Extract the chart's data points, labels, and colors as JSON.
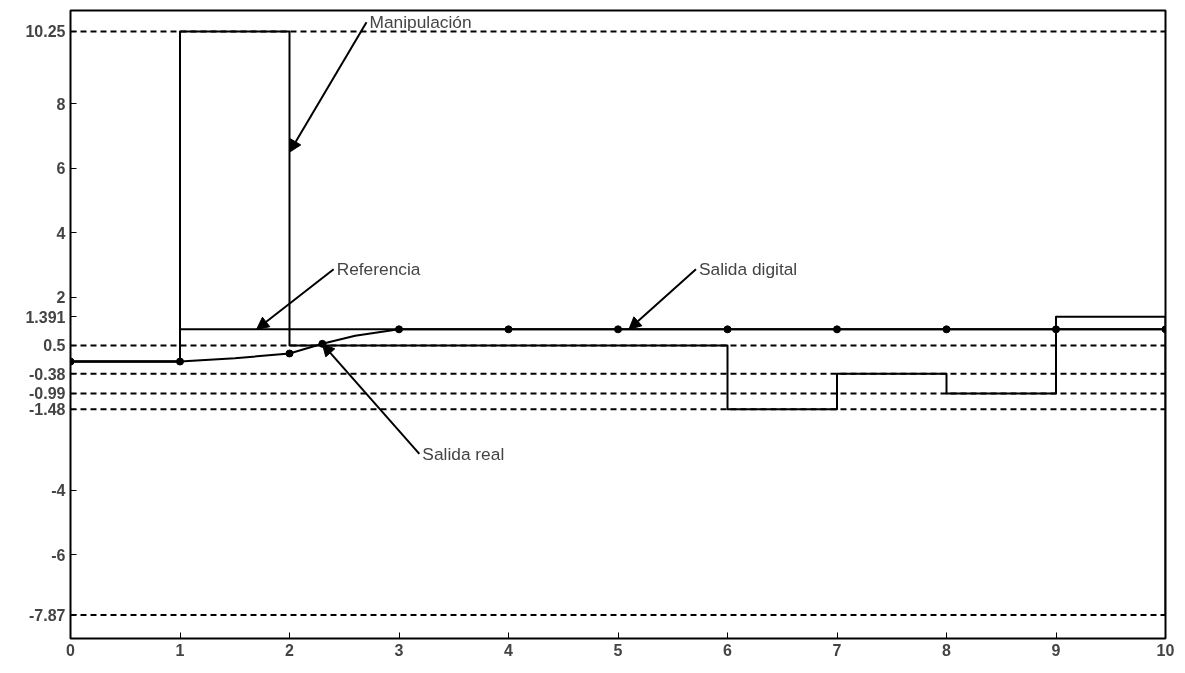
{
  "chart_data": {
    "type": "line",
    "xlim": [
      0,
      10
    ],
    "xticks": [
      0,
      1,
      2,
      3,
      4,
      5,
      6,
      7,
      8,
      9,
      10
    ],
    "ylim": [
      -8.6,
      10.9
    ],
    "yticks": [
      10.25,
      8,
      6,
      4,
      2,
      1.391,
      0.5,
      -0.38,
      -0.99,
      -1.48,
      -4,
      -6,
      -7.87
    ],
    "grid": false,
    "series": [
      {
        "type": "step",
        "color": "#000000",
        "x": [
          0,
          1,
          2,
          3,
          4,
          5,
          6,
          7,
          8,
          9,
          10
        ],
        "values": [
          0,
          10.25,
          0.5,
          0.5,
          0.5,
          0.5,
          -1.48,
          -0.38,
          -0.99,
          1.391,
          -7.87
        ]
      },
      {
        "type": "step",
        "color": "#000000",
        "x": [
          0,
          1,
          10
        ],
        "values": [
          0,
          1,
          1
        ]
      },
      {
        "color": "#000000",
        "x": [
          0,
          1,
          1.5,
          2,
          2.3,
          2.6,
          3,
          3.3,
          4,
          5,
          6,
          7,
          8,
          9,
          10
        ],
        "values": [
          0,
          0,
          0.1,
          0.25,
          0.55,
          0.8,
          1.0,
          1.0,
          1.0,
          1.0,
          1.0,
          1.0,
          1.0,
          1.0,
          1.0
        ]
      },
      {
        "type": "scatter",
        "marker": "circle",
        "color": "#000000",
        "x": [
          0,
          1,
          2,
          2.3,
          3,
          4,
          5,
          6,
          7,
          8,
          9,
          10
        ],
        "values": [
          0,
          0,
          0.25,
          0.55,
          1.0,
          1.0,
          1.0,
          1.0,
          1.0,
          1.0,
          1.0,
          1.0
        ]
      }
    ],
    "ref_lines": [
      {
        "axis": "y",
        "value": 10.25,
        "line_style": "dashed"
      },
      {
        "axis": "y",
        "value": 0.5,
        "line_style": "dashed"
      },
      {
        "axis": "y",
        "value": -0.38,
        "line_style": "dashed"
      },
      {
        "axis": "y",
        "value": -0.99,
        "line_style": "dashed"
      },
      {
        "axis": "y",
        "value": -1.48,
        "line_style": "dashed"
      },
      {
        "axis": "y",
        "value": -7.87,
        "line_style": "dashed"
      }
    ],
    "annotations": [
      {
        "text": "Manipulación",
        "x": 2,
        "y": 6.5
      },
      {
        "text": "Referencia",
        "x": 1.7,
        "y": 1.0
      },
      {
        "text": "Salida digital",
        "x": 5.1,
        "y": 1.0
      },
      {
        "text": "Salida real",
        "x": 2.3,
        "y": 0.55
      }
    ]
  }
}
